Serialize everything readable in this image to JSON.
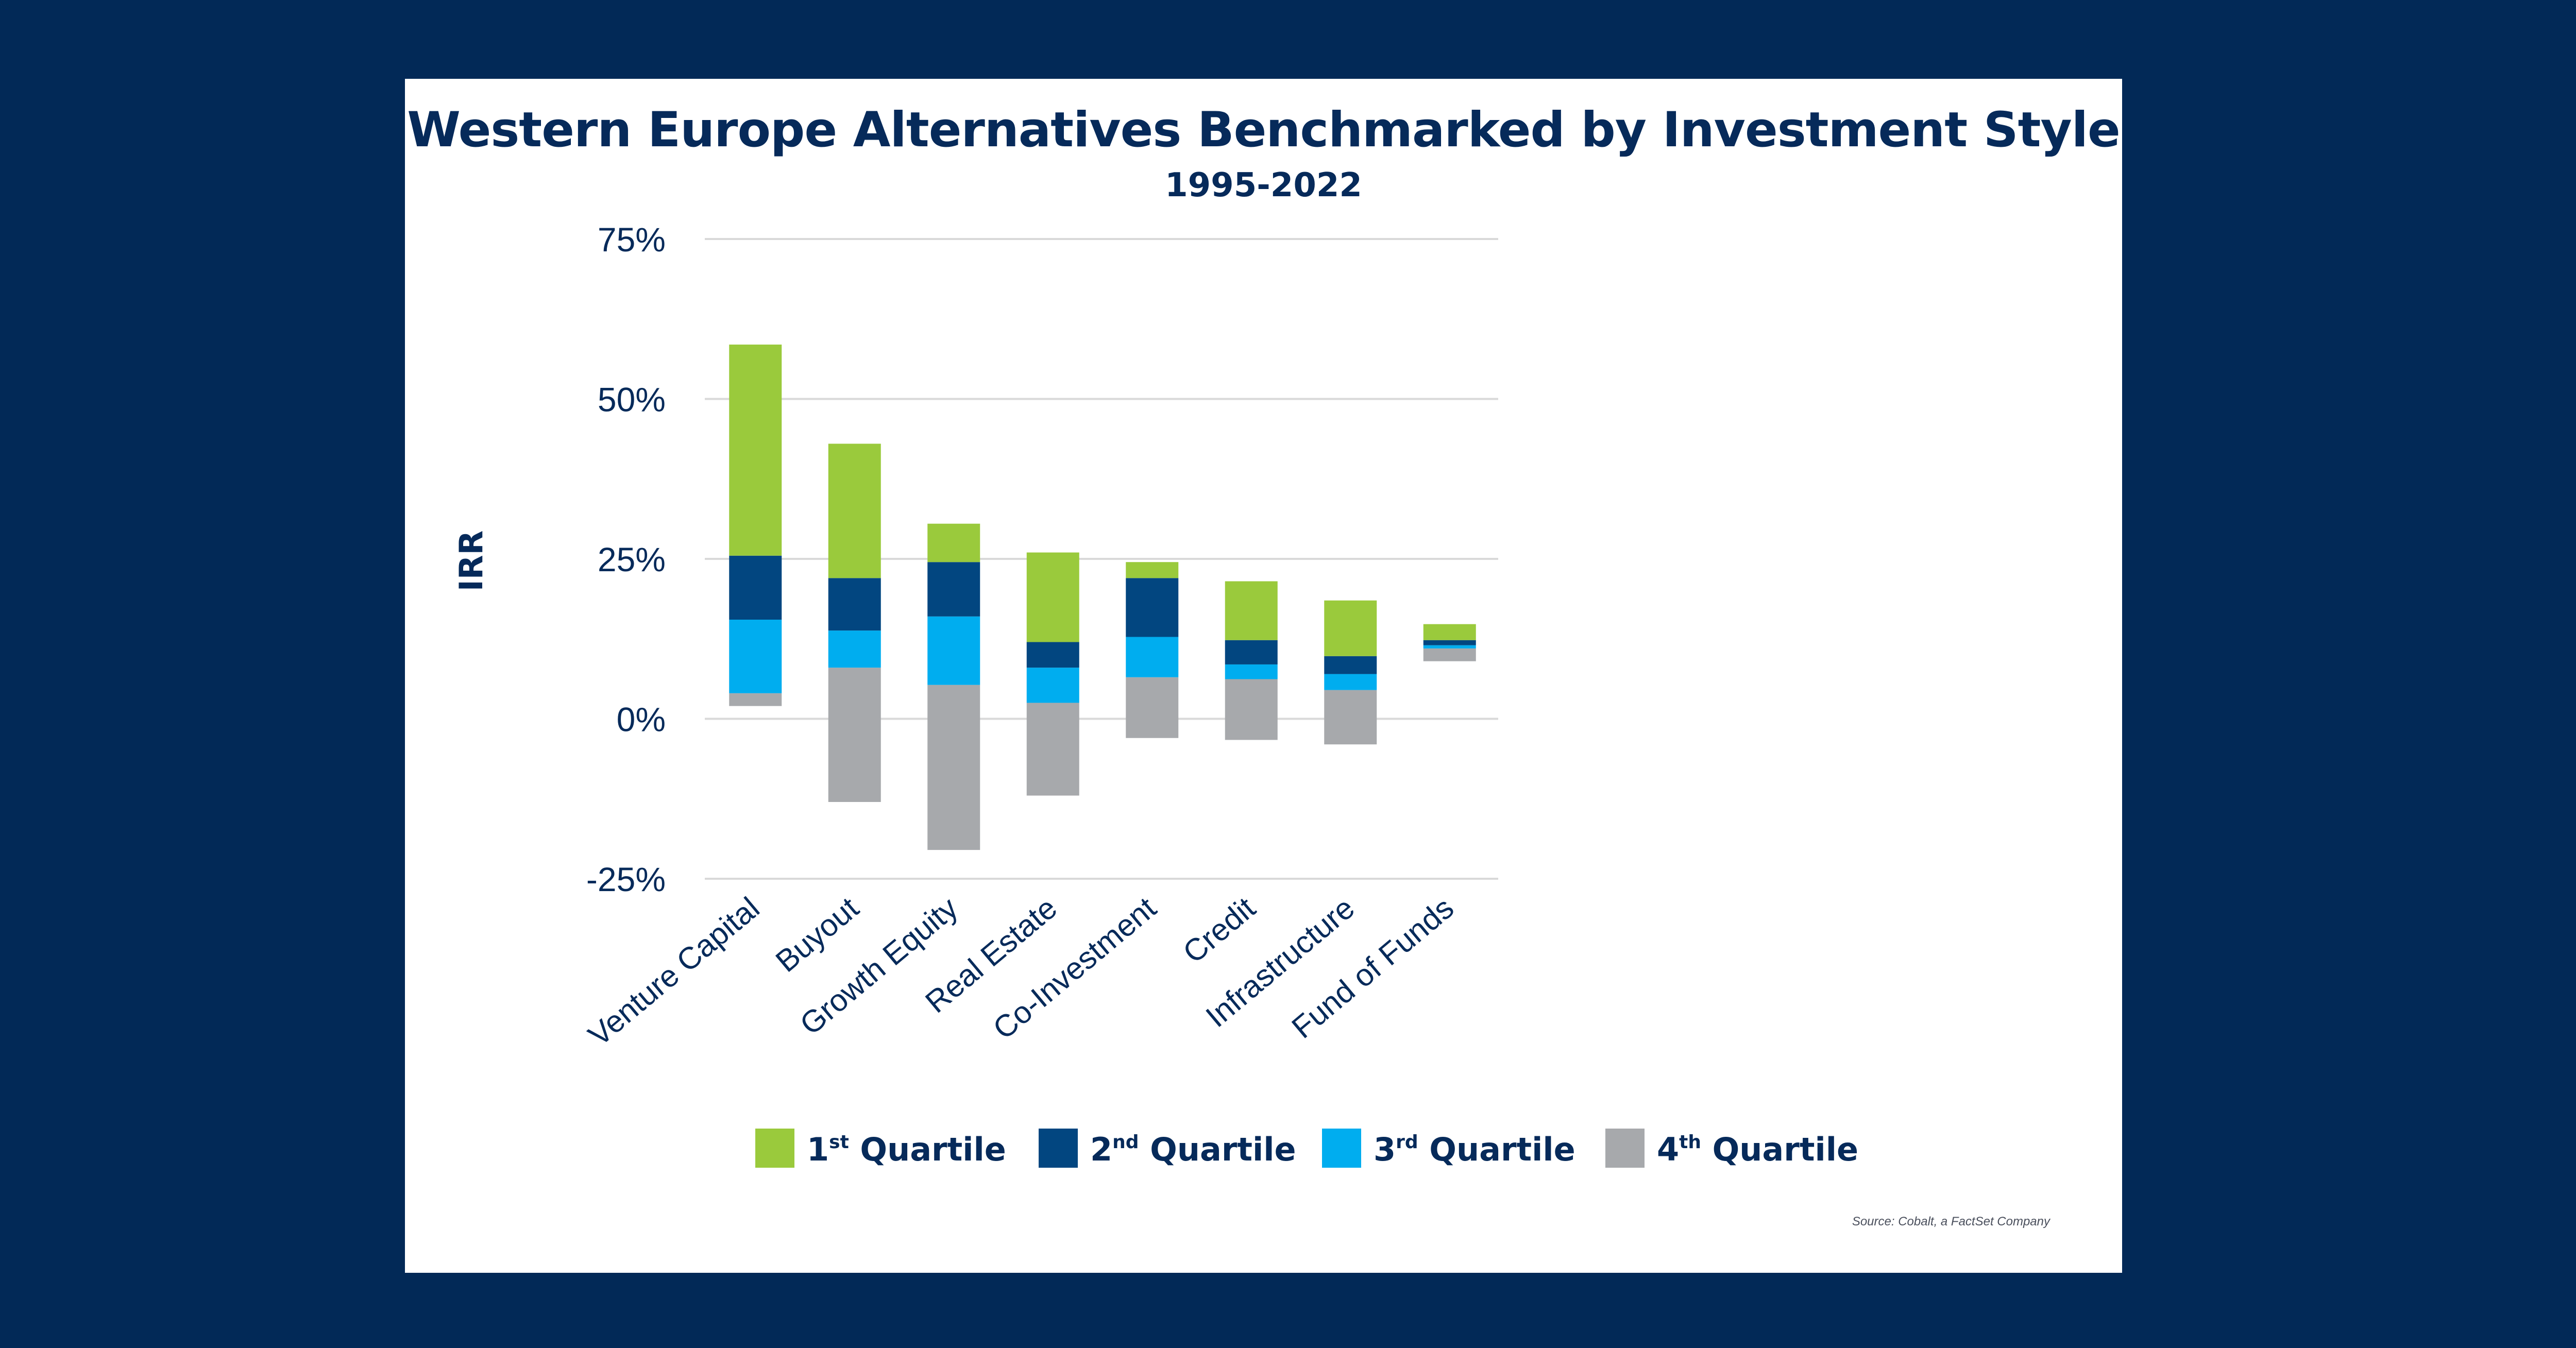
{
  "title": "Western Europe Alternatives Benchmarked by Investment Style",
  "subtitle": "1995-2022",
  "source": "Source: Cobalt, a FactSet Company",
  "colors": {
    "background": "#022957",
    "text": "#062a5a",
    "q1": "#9aca3c",
    "q2": "#024680",
    "q3": "#00adef",
    "q4": "#a7a9ac",
    "grid": "#d9d9d9"
  },
  "chart_data": {
    "type": "bar",
    "stacked": true,
    "ylabel": "IRR",
    "ylim": [
      -25,
      75
    ],
    "yticks": [
      75,
      50,
      25,
      0,
      -25
    ],
    "ytick_labels": [
      "75%",
      "50%",
      "25%",
      "0%",
      "-25%"
    ],
    "categories": [
      "Venture Capital",
      "Buyout",
      "Growth Equity",
      "Real Estate",
      "Co-Investment",
      "Credit",
      "Infrastructure",
      "Fund of Funds"
    ],
    "boundaries_description": "Floating stacked bars: [bottom, q4|q3, q3|q2, q2|q1, top] in % IRR",
    "boundaries": [
      [
        2,
        4,
        15.5,
        25.5,
        58.5
      ],
      [
        -13,
        8,
        13.8,
        22,
        43
      ],
      [
        -20.5,
        5.3,
        16,
        24.5,
        30.5
      ],
      [
        -12,
        2.5,
        8,
        12,
        26
      ],
      [
        -3,
        6.5,
        12.8,
        22,
        24.5
      ],
      [
        -3.3,
        6.2,
        8.5,
        12.3,
        21.5
      ],
      [
        -4,
        4.5,
        7,
        9.8,
        18.5
      ],
      [
        9,
        11,
        11.5,
        12.3,
        14.8
      ]
    ],
    "series": [
      {
        "name": "1st Quartile",
        "key": "q1"
      },
      {
        "name": "2nd Quartile",
        "key": "q2"
      },
      {
        "name": "3rd Quartile",
        "key": "q3"
      },
      {
        "name": "4th Quartile",
        "key": "q4"
      }
    ],
    "legend": [
      {
        "num": "1",
        "sup": "st",
        "text": "Quartile",
        "key": "q1"
      },
      {
        "num": "2",
        "sup": "nd",
        "text": "Quartile",
        "key": "q2"
      },
      {
        "num": "3",
        "sup": "rd",
        "text": "Quartile",
        "key": "q3"
      },
      {
        "num": "4",
        "sup": "th",
        "text": "Quartile",
        "key": "q4"
      }
    ],
    "legend_position": "bottom"
  }
}
